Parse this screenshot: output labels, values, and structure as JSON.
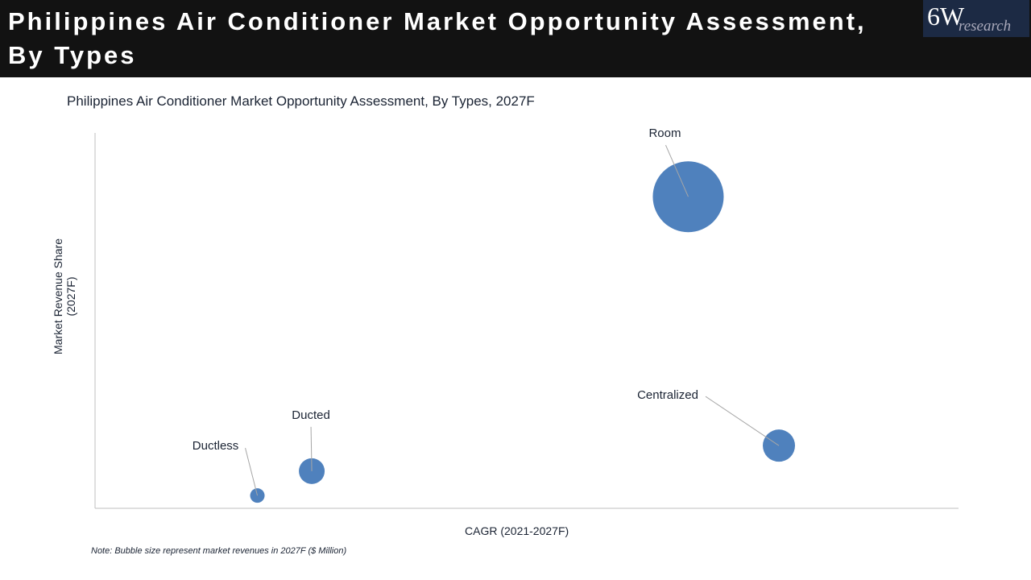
{
  "header": {
    "title": "Philippines Air Conditioner Market Opportunity Assessment, By Types",
    "logo_main": "6W",
    "logo_sub": "research"
  },
  "chart_data": {
    "type": "scatter",
    "title": "Philippines Air Conditioner Market Opportunity Assessment, By Types, 2027F",
    "xlabel": "CAGR (2021-2027F)",
    "ylabel": "Market Revenue Share (2027F)",
    "xlim": [
      0,
      100
    ],
    "ylim": [
      0,
      100
    ],
    "grid": false,
    "color": "#4f81bd",
    "points": [
      {
        "label": "Room",
        "x": 68.7,
        "y": 83.0,
        "size": 1936
      },
      {
        "label": "Centralized",
        "x": 79.2,
        "y": 16.7,
        "size": 400
      },
      {
        "label": "Ducted",
        "x": 25.1,
        "y": 9.9,
        "size": 256
      },
      {
        "label": "Ductless",
        "x": 18.8,
        "y": 3.4,
        "size": 81
      }
    ],
    "note": "Note: Bubble size represent market revenues in 2027F ($ Million)"
  }
}
